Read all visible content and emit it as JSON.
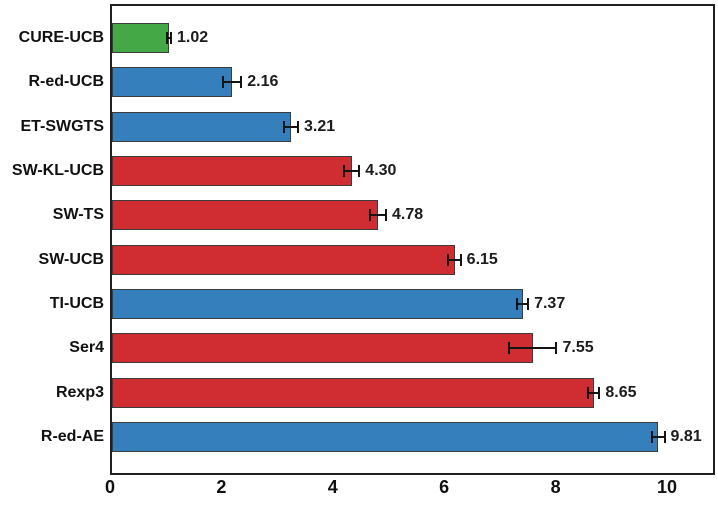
{
  "chart_data": {
    "type": "bar",
    "orientation": "horizontal",
    "title": "",
    "xlabel": "",
    "ylabel": "",
    "grid": false,
    "legend": false,
    "categories": [
      "CURE-UCB",
      "R-ed-UCB",
      "ET-SWGTS",
      "SW-KL-UCB",
      "SW-TS",
      "SW-UCB",
      "TI-UCB",
      "Ser4",
      "Rexp3",
      "R-ed-AE"
    ],
    "values": [
      1.02,
      2.16,
      3.21,
      4.3,
      4.78,
      6.15,
      7.37,
      7.55,
      8.65,
      9.81
    ],
    "value_labels": [
      "1.02",
      "2.16",
      "3.21",
      "4.30",
      "4.78",
      "6.15",
      "7.37",
      "7.55",
      "8.65",
      "9.81"
    ],
    "errors": [
      0.04,
      0.16,
      0.13,
      0.14,
      0.14,
      0.11,
      0.1,
      0.43,
      0.1,
      0.11
    ],
    "bar_colors": [
      "#45a847",
      "#3580bc",
      "#3580bc",
      "#d02d33",
      "#d02d33",
      "#d02d33",
      "#3580bc",
      "#d02d33",
      "#d02d33",
      "#3580bc"
    ],
    "x_ticks": [
      0,
      2,
      4,
      6,
      8,
      10
    ],
    "x_tick_labels": [
      "0",
      "2",
      "4",
      "6",
      "8",
      "10"
    ],
    "xlim": [
      0,
      10.9
    ],
    "colors": {
      "green": "#45a847",
      "blue": "#3580bc",
      "red": "#d02d33",
      "bar_edge": "#3c3c3c",
      "frame": "#1f1f1f",
      "error_bar": "#141414",
      "text": "#111111",
      "background": "#ffffff"
    }
  }
}
